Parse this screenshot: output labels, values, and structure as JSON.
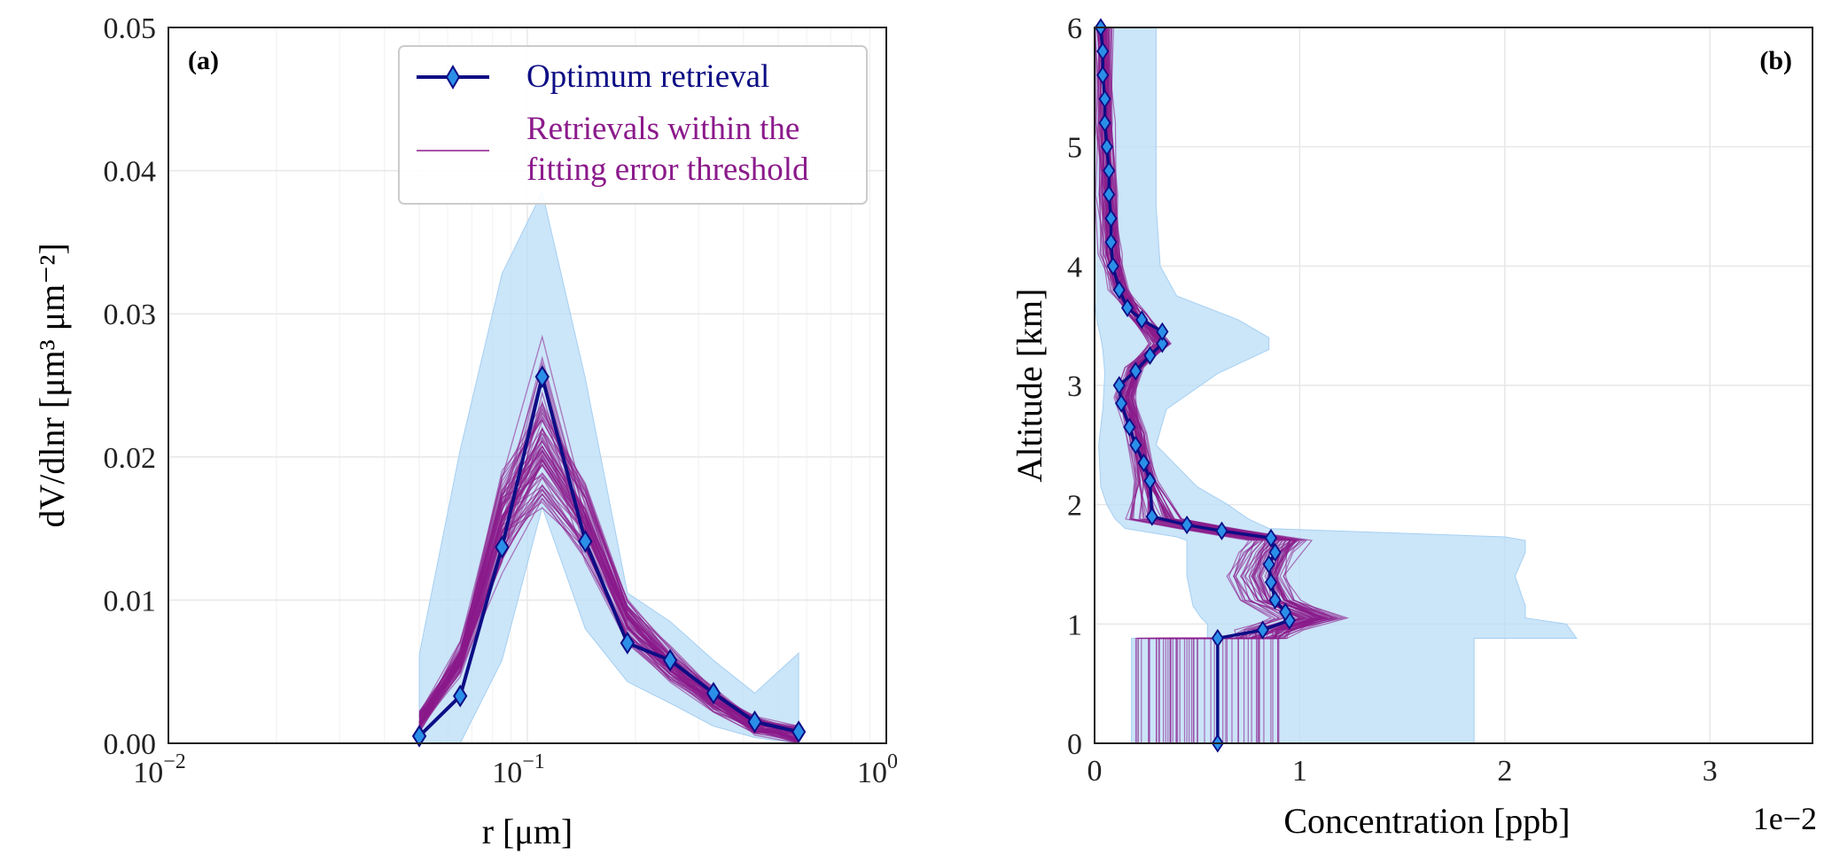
{
  "colors": {
    "optimum": "#0d0d85",
    "marker": "#2b8fe8",
    "retrievals": "#8b1a8b",
    "band": "#b9dcf7",
    "grid": "#e7e7e7"
  },
  "chart_data": [
    {
      "panel_label": "(a)",
      "type": "line",
      "xscale": "log",
      "xlim": [
        0.01,
        1
      ],
      "ylim": [
        0,
        0.05
      ],
      "xlabel": "r [μm]",
      "ylabel": "dV/dlnr [μm³ μm⁻²]",
      "x_ticks": [
        {
          "base": "10",
          "exp": "−2"
        },
        {
          "base": "10",
          "exp": "−1"
        },
        {
          "base": "10",
          "exp": "0"
        }
      ],
      "y_ticks": [
        "0.00",
        "0.01",
        "0.02",
        "0.03",
        "0.04",
        "0.05"
      ],
      "legend": {
        "position": "top-right",
        "optimum_label": "Optimum retrieval",
        "retrievals_label_line1": "Retrievals within the",
        "retrievals_label_line2": "fitting error threshold"
      },
      "series": [
        {
          "name": "Optimum retrieval",
          "x": [
            0.05,
            0.065,
            0.085,
            0.11,
            0.145,
            0.19,
            0.25,
            0.33,
            0.43,
            0.57
          ],
          "y": [
            0.0005,
            0.0033,
            0.0137,
            0.0256,
            0.0141,
            0.007,
            0.0058,
            0.0035,
            0.0015,
            0.0008
          ]
        },
        {
          "name": "Retrievals within the fitting error threshold (representative mean)",
          "x": [
            0.05,
            0.065,
            0.085,
            0.11,
            0.145,
            0.19,
            0.25,
            0.33,
            0.43,
            0.57
          ],
          "y": [
            0.0015,
            0.0058,
            0.0155,
            0.02,
            0.0155,
            0.0085,
            0.0055,
            0.003,
            0.0013,
            0.0006
          ]
        }
      ],
      "uncertainty_band": {
        "x": [
          0.05,
          0.065,
          0.085,
          0.11,
          0.145,
          0.19,
          0.25,
          0.33,
          0.43,
          0.57
        ],
        "upper": [
          0.0062,
          0.0205,
          0.0328,
          0.0385,
          0.0255,
          0.0105,
          0.0085,
          0.0058,
          0.0035,
          0.0063
        ],
        "lower": [
          0,
          0,
          0.0058,
          0.0165,
          0.008,
          0.0043,
          0.0028,
          0.0012,
          0.0004,
          0
        ]
      }
    },
    {
      "panel_label": "(b)",
      "type": "line",
      "xlim": [
        0,
        3.5
      ],
      "ylim": [
        0,
        6
      ],
      "xlabel": "Concentration [ppb]",
      "ylabel": "Altitude [km]",
      "x_multiplier": "1e−2",
      "x_ticks": [
        "0",
        "1",
        "2",
        "3"
      ],
      "y_ticks": [
        "0",
        "1",
        "2",
        "3",
        "4",
        "5",
        "6"
      ],
      "series": [
        {
          "name": "Optimum retrieval",
          "x": [
            0.6,
            0.6,
            0.6,
            0.82,
            0.95,
            0.93,
            0.88,
            0.86,
            0.85,
            0.88,
            0.86,
            0.62,
            0.45,
            0.28,
            0.27,
            0.24,
            0.2,
            0.17,
            0.13,
            0.12,
            0.2,
            0.27,
            0.33,
            0.33,
            0.23,
            0.16,
            0.12,
            0.09,
            0.08,
            0.08,
            0.07,
            0.07,
            0.06,
            0.05,
            0.05,
            0.04,
            0.04,
            0.03
          ],
          "y": [
            0.0,
            0.5,
            0.88,
            0.95,
            1.03,
            1.1,
            1.2,
            1.35,
            1.5,
            1.6,
            1.72,
            1.78,
            1.83,
            1.9,
            2.2,
            2.35,
            2.5,
            2.65,
            2.85,
            3.0,
            3.12,
            3.25,
            3.35,
            3.45,
            3.55,
            3.65,
            3.8,
            4.0,
            4.2,
            4.4,
            4.6,
            4.8,
            5.0,
            5.2,
            5.4,
            5.6,
            5.8,
            6.0
          ]
        },
        {
          "name": "Retrievals within the fitting error threshold (representative)",
          "x": [
            0.8,
            0.8,
            1.0,
            0.85,
            0.8,
            0.85,
            0.9,
            0.55,
            0.3,
            0.25,
            0.2,
            0.15,
            0.2,
            0.32,
            0.2,
            0.12,
            0.08,
            0.06,
            0.05,
            0.04
          ],
          "y": [
            0.88,
            0.95,
            1.05,
            1.2,
            1.4,
            1.6,
            1.7,
            1.8,
            1.88,
            2.2,
            2.6,
            2.9,
            3.15,
            3.35,
            3.6,
            3.8,
            4.1,
            4.6,
            5.2,
            6.0
          ]
        }
      ],
      "uncertainty_band": {
        "y": [
          0.0,
          0.88,
          0.88,
          1.0,
          1.05,
          1.15,
          1.4,
          1.6,
          1.7,
          1.73,
          1.8,
          1.88,
          2.0,
          2.15,
          2.5,
          2.8,
          3.1,
          3.3,
          3.4,
          3.55,
          3.75,
          4.0,
          4.5,
          5.0,
          5.5,
          6.0
        ],
        "upper": [
          1.85,
          1.85,
          2.35,
          2.3,
          2.1,
          2.1,
          2.05,
          2.1,
          2.1,
          2.0,
          0.85,
          0.75,
          0.65,
          0.5,
          0.3,
          0.35,
          0.6,
          0.85,
          0.85,
          0.7,
          0.4,
          0.32,
          0.3,
          0.3,
          0.3,
          0.3
        ],
        "lower": [
          0.18,
          0.18,
          0.55,
          0.55,
          0.52,
          0.48,
          0.45,
          0.45,
          0.45,
          0.4,
          0.15,
          0.1,
          0.06,
          0.03,
          0.02,
          0.04,
          0.05,
          0.04,
          0.03,
          0.01,
          0.0,
          0.0,
          0.0,
          0.0,
          0.0,
          0.0
        ]
      }
    }
  ]
}
